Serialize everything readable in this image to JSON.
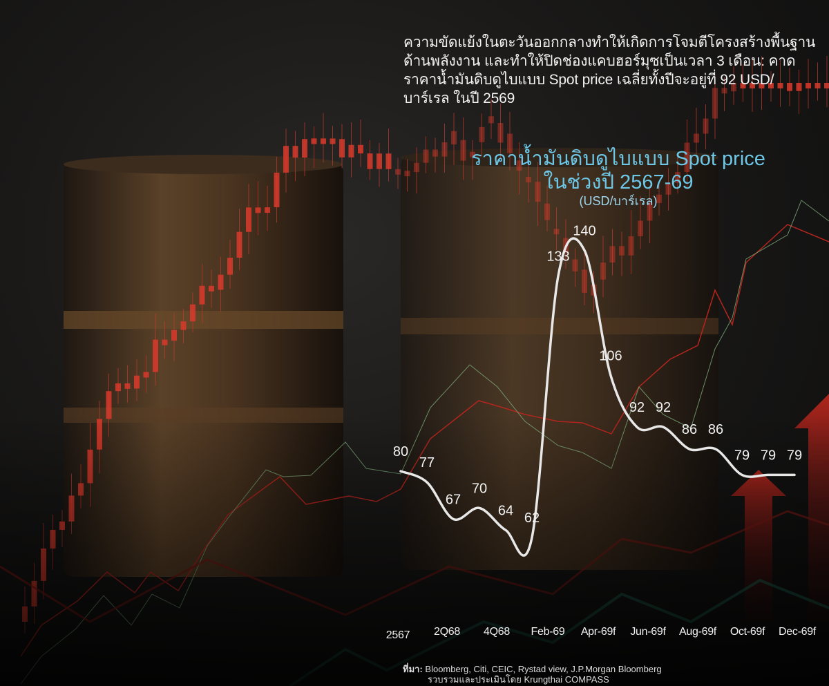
{
  "headline": "ความขัดแย้งในตะวันออกกลางทำให้เกิดการโจมตีโครงสร้างพื้นฐานด้านพลังงาน และทำให้ปิดช่องแคบฮอร์มุซเป็นเวลา 3 เดือน: คาดราคาน้ำมันดิบดูไบแบบ Spot price เฉลี่ยทั้งปีจะอยู่ที่ 92 USD/บาร์เรล ในปี 2569",
  "source": {
    "label": "ที่มา:",
    "line1": "Bloomberg, Citi, CEIC, Rystad view, J.P.Morgan Bloomberg",
    "line2": "รวบรวมและประเมินโดย Krungthai COMPASS"
  },
  "colors": {
    "line": "#e8e8e8",
    "title": "#6cc6e6",
    "candle": "#d8392b"
  },
  "chart_data": {
    "type": "line",
    "title": "ราคาน้ำมันดิบดูไบแบบ Spot price",
    "subtitle": "ในช่วงปี 2567-69",
    "ylabel": "(USD/บาร์เรล)",
    "x_tick_labels": [
      "2567",
      "2Q68",
      "4Q68",
      "Feb-69",
      "Apr-69f",
      "Jun-69f",
      "Aug-69f",
      "Oct-69f",
      "Dec-69f"
    ],
    "values": [
      80,
      77,
      67,
      70,
      64,
      62,
      133,
      140,
      106,
      92,
      92,
      86,
      86,
      79,
      79,
      79
    ],
    "data_labels": [
      "80",
      "77",
      "67",
      "70",
      "64",
      "62",
      "133",
      "140",
      "106",
      "92",
      "92",
      "86",
      "86",
      "79",
      "79",
      "79"
    ],
    "grid": false
  }
}
